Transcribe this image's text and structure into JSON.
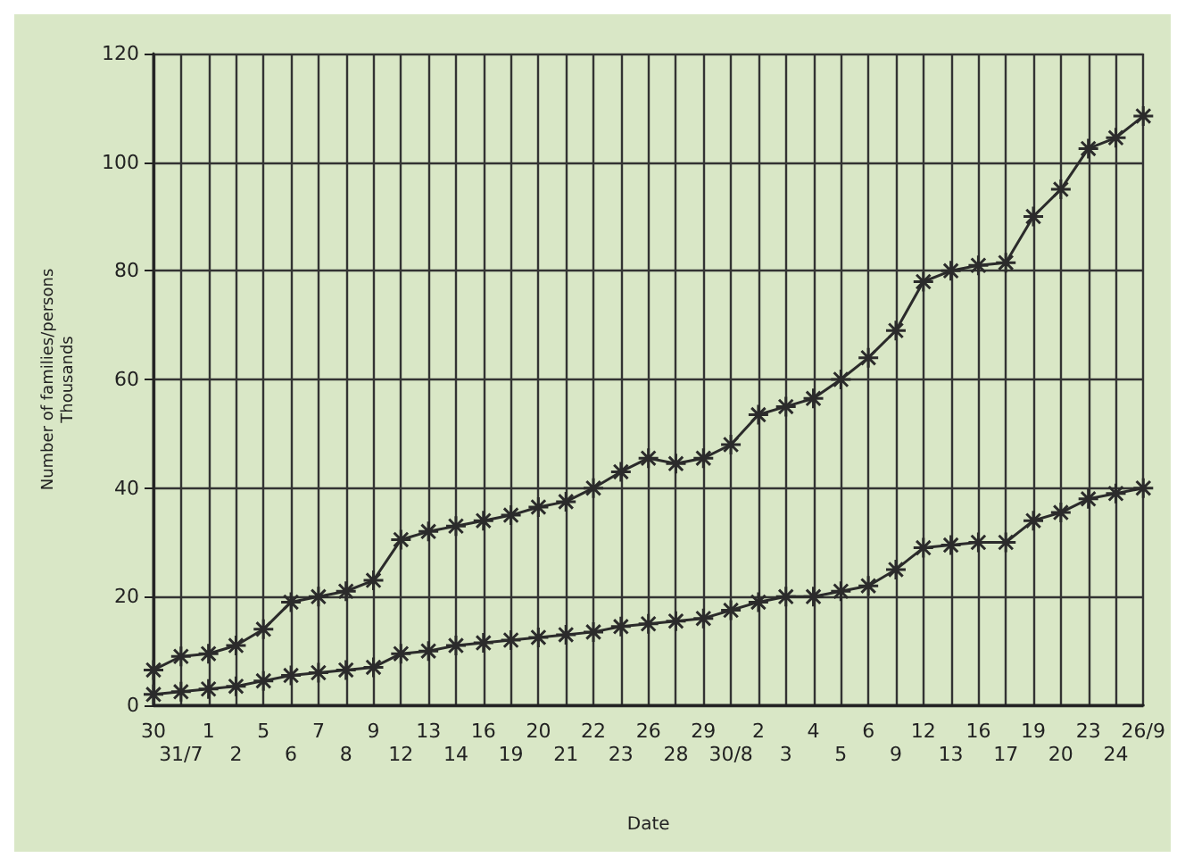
{
  "chart_data": {
    "type": "line",
    "xlabel": "Date",
    "ylabel": "Number of families/persons\nThousands",
    "categories": [
      "30",
      "31/7",
      "1",
      "2",
      "5",
      "6",
      "7",
      "8",
      "9",
      "12",
      "13",
      "14",
      "16",
      "19",
      "20",
      "21",
      "22",
      "23",
      "26",
      "28",
      "29",
      "30/8",
      "2",
      "3",
      "4",
      "5",
      "6",
      "9",
      "12",
      "13",
      "16",
      "17",
      "19",
      "20",
      "23",
      "24",
      "26/9"
    ],
    "series": [
      {
        "color": "#2b2b2b",
        "marker": "cross",
        "values": [
          6.5,
          9,
          9.5,
          11,
          14,
          19,
          20,
          21,
          23,
          30.5,
          32,
          33,
          34,
          35,
          36.5,
          37.5,
          40,
          43,
          45.5,
          44.5,
          45.5,
          48,
          53.5,
          55,
          56.5,
          60,
          64,
          69,
          78,
          80,
          81,
          81.5,
          90,
          95,
          102.5,
          104.5,
          108.5
        ]
      },
      {
        "color": "#2b2b2b",
        "marker": "cross",
        "values": [
          2,
          2.5,
          3,
          3.5,
          4.5,
          5.5,
          6,
          6.5,
          7,
          9.5,
          10,
          11,
          11.5,
          12,
          12.5,
          13,
          13.5,
          14.5,
          15,
          15.5,
          16,
          17.5,
          19,
          20,
          20,
          21,
          22,
          25,
          29,
          29.5,
          30,
          30,
          34,
          35.5,
          38,
          39,
          40
        ]
      }
    ],
    "ylim": [
      0,
      120
    ],
    "yticks": [
      0,
      20,
      40,
      60,
      80,
      100,
      120
    ],
    "grid": true,
    "line_style": "solid"
  }
}
